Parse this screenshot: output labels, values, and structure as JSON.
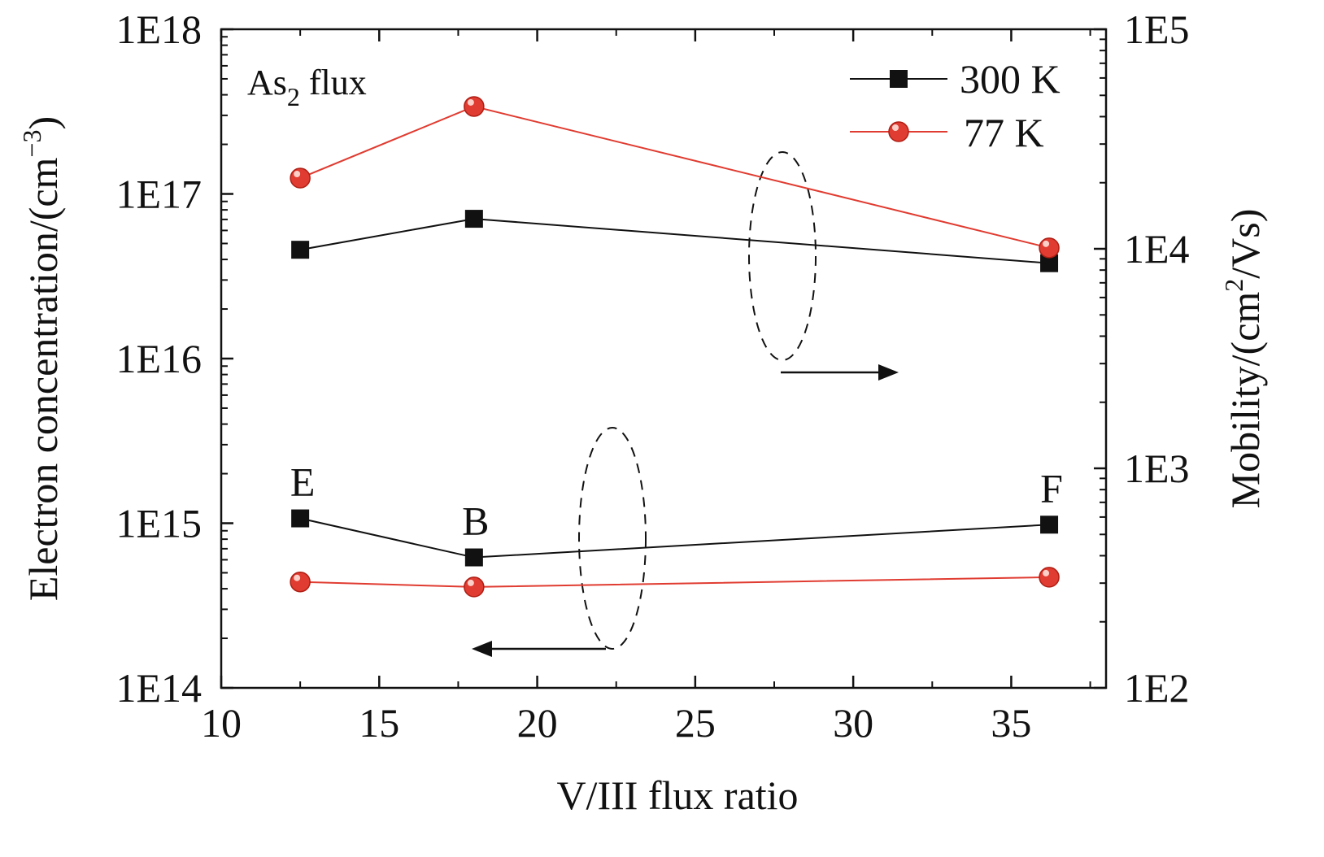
{
  "chart_data": {
    "type": "line",
    "title": "",
    "xlabel": "V/III flux ratio",
    "ylabel_left": {
      "text": "Electron concentration/(cm",
      "sup": "−3",
      "close": ")"
    },
    "ylabel_right": {
      "text": "Mobility/(cm",
      "sup": "2",
      "close": "/Vs)"
    },
    "xlim": [
      10,
      38
    ],
    "x_ticks": [
      10,
      15,
      20,
      25,
      30,
      35
    ],
    "ylim_left": [
      100000000000000.0,
      1e+18
    ],
    "y_ticks_left": [
      "1E14",
      "1E15",
      "1E16",
      "1E17",
      "1E18"
    ],
    "ylim_right": [
      100,
      100000
    ],
    "y_ticks_right": [
      "1E2",
      "1E3",
      "1E4",
      "1E5"
    ],
    "annotation": {
      "text": "As",
      "sub": "2",
      "rest": " flux"
    },
    "series": [
      {
        "name": "300 K",
        "quantity": "electron concentration",
        "axis": "left",
        "color": "#111111",
        "marker": "square",
        "x": [
          12.5,
          18,
          36.2
        ],
        "y": [
          1070000000000000.0,
          620000000000000.0,
          980000000000000.0
        ]
      },
      {
        "name": "77 K",
        "quantity": "electron concentration",
        "axis": "left",
        "color": "#e03c31",
        "marker": "circle",
        "x": [
          12.5,
          18,
          36.2
        ],
        "y": [
          440000000000000.0,
          410000000000000.0,
          470000000000000.0
        ]
      },
      {
        "name": "300 K",
        "quantity": "mobility",
        "axis": "right",
        "color": "#111111",
        "marker": "square",
        "x": [
          12.5,
          18,
          36.2
        ],
        "y": [
          9900,
          13700,
          8600
        ]
      },
      {
        "name": "77 K",
        "quantity": "mobility",
        "axis": "right",
        "color": "#e03c31",
        "marker": "circle",
        "x": [
          12.5,
          18,
          36.2
        ],
        "y": [
          21000,
          44500,
          10100
        ]
      }
    ],
    "point_labels": [
      {
        "text": "E",
        "x": 12.5,
        "y": 1070000000000000.0,
        "axis": "left"
      },
      {
        "text": "B",
        "x": 18,
        "y": 620000000000000.0,
        "axis": "left"
      },
      {
        "text": "F",
        "x": 36.2,
        "y": 980000000000000.0,
        "axis": "left"
      }
    ],
    "legend": {
      "position": "top-right",
      "entries": [
        "300 K",
        "77 K"
      ]
    }
  }
}
